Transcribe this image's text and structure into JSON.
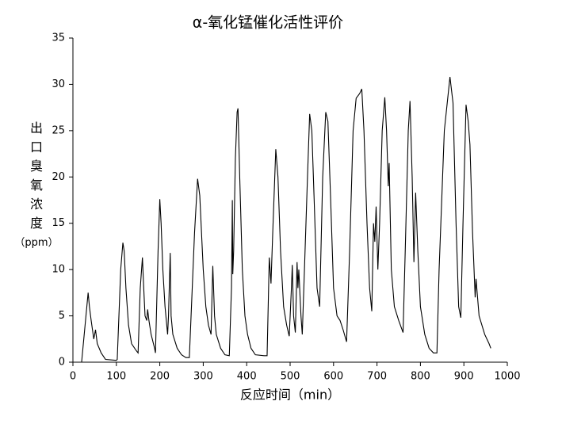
{
  "chart_data": {
    "type": "line",
    "title": "α-氧化锰催化活性评价",
    "x_label": "反应时间（min）",
    "y_label": "出口臭氧浓度（ppm）",
    "xlim": [
      0,
      1000
    ],
    "xticks": [
      0,
      100,
      200,
      300,
      400,
      500,
      600,
      700,
      800,
      900,
      1000
    ],
    "ylim": [
      0,
      35
    ],
    "yticks": [
      0,
      5,
      10,
      15,
      20,
      25,
      30,
      35
    ],
    "series": [
      {
        "color": "#000000",
        "x": [
          20,
          35,
          38,
          42,
          48,
          52,
          56,
          65,
          75,
          100,
          102,
          110,
          115,
          118,
          122,
          128,
          135,
          145,
          150,
          155,
          160,
          163,
          166,
          170,
          172,
          175,
          180,
          188,
          190,
          196,
          200,
          203,
          207,
          212,
          218,
          220,
          224,
          226,
          230,
          240,
          250,
          260,
          268,
          280,
          287,
          292,
          300,
          306,
          312,
          318,
          322,
          326,
          330,
          340,
          350,
          360,
          365,
          367,
          368,
          370,
          374,
          378,
          380,
          384,
          390,
          396,
          402,
          410,
          420,
          440,
          447,
          452,
          456,
          460,
          467,
          472,
          478,
          485,
          492,
          498,
          503,
          505,
          508,
          512,
          516,
          518,
          520,
          525,
          528,
          533,
          540,
          545,
          550,
          555,
          562,
          568,
          575,
          582,
          587,
          593,
          600,
          608,
          615,
          622,
          630,
          637,
          645,
          652,
          660,
          665,
          670,
          677,
          683,
          688,
          692,
          695,
          698,
          702,
          706,
          712,
          718,
          722,
          726,
          728,
          733,
          740,
          750,
          760,
          765,
          772,
          776,
          781,
          785,
          789,
          794,
          800,
          810,
          820,
          830,
          838,
          843,
          855,
          868,
          875,
          882,
          888,
          893,
          898,
          905,
          910,
          914,
          920,
          926,
          928,
          935,
          948,
          958,
          962
        ],
        "values": [
          0,
          7.5,
          6,
          4.5,
          2.5,
          3.5,
          2,
          1,
          0.3,
          0.2,
          0.3,
          10,
          12.9,
          12,
          8,
          4,
          2,
          1.3,
          1,
          8,
          11.3,
          8,
          5,
          4.5,
          5.7,
          4.5,
          3,
          1.5,
          1,
          12,
          17.6,
          15,
          10,
          6,
          3,
          5,
          11.8,
          5,
          3,
          1.5,
          0.8,
          0.5,
          0.5,
          14,
          19.8,
          18,
          10,
          6,
          4,
          3,
          10.4,
          5,
          3,
          1.5,
          0.8,
          0.7,
          8,
          17.5,
          9.5,
          12,
          22,
          27,
          27.4,
          20,
          10,
          5,
          3,
          1.5,
          0.8,
          0.7,
          0.7,
          11.3,
          8.5,
          14,
          23,
          20,
          12,
          6,
          4,
          2.8,
          8,
          10.5,
          5,
          3.2,
          10.8,
          8,
          10,
          5,
          3,
          10,
          20,
          26.8,
          25,
          18,
          8,
          6,
          20,
          27,
          26,
          18,
          8,
          5,
          4.5,
          3.5,
          2.2,
          12,
          25,
          28.5,
          29,
          29.5,
          25,
          15,
          8,
          5.5,
          15,
          13,
          16.8,
          10,
          15,
          25,
          28.6,
          25,
          19,
          21.5,
          10,
          6,
          4.5,
          3.2,
          12,
          25,
          28.2,
          20,
          10.8,
          18.3,
          12,
          6,
          3,
          1.5,
          1,
          1,
          10,
          25,
          30.8,
          28,
          15,
          6,
          4.8,
          15,
          27.8,
          26,
          23.5,
          14,
          7,
          9,
          5,
          3,
          2,
          1.5
        ]
      }
    ]
  }
}
